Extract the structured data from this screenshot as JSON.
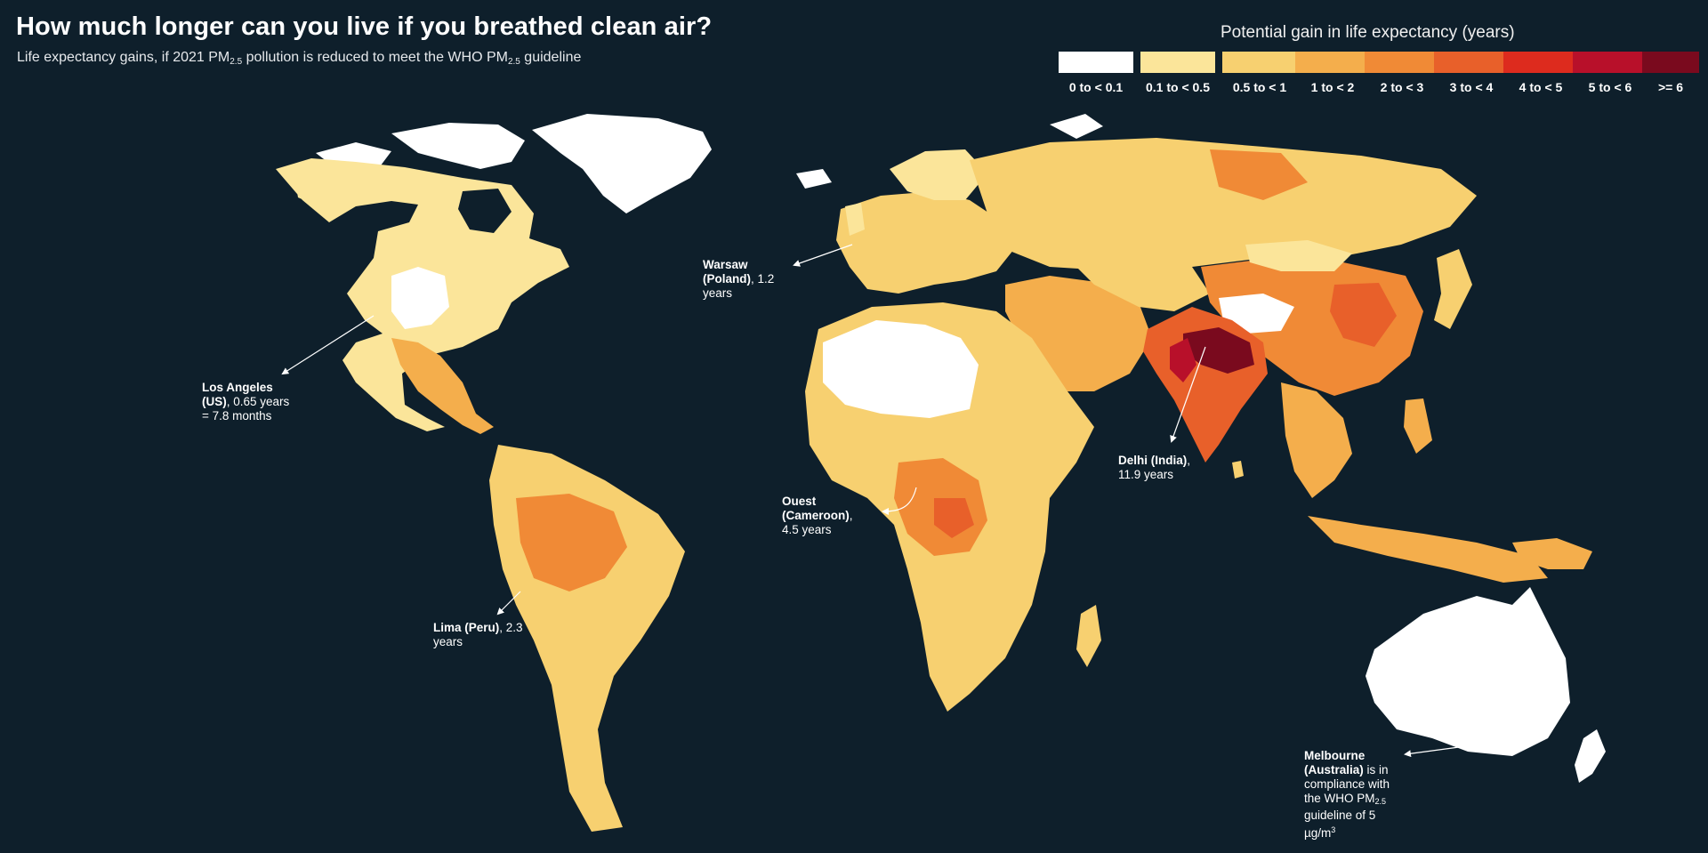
{
  "header": {
    "title": "How much longer can you live if you breathed clean air?",
    "subtitle_part1": "Life expectancy gains, if 2021 PM",
    "subtitle_sub1": "2.5",
    "subtitle_part2": " pollution is reduced to meet the WHO PM",
    "subtitle_sub2": "2.5",
    "subtitle_part3": " guideline"
  },
  "legend": {
    "title": "Potential gain in life expectancy (years)",
    "items": [
      {
        "label": "0 to < 0.1",
        "color": "#ffffff"
      },
      {
        "label": "0.1 to < 0.5",
        "color": "#fbe59a"
      },
      {
        "label": "0.5 to < 1",
        "color": "#f7d070"
      },
      {
        "label": "1 to < 2",
        "color": "#f4ae4c"
      },
      {
        "label": "2 to < 3",
        "color": "#f08a36"
      },
      {
        "label": "3 to < 4",
        "color": "#e8602a"
      },
      {
        "label": "4 to < 5",
        "color": "#dd2b1e"
      },
      {
        "label": "5 to < 6",
        "color": "#b8102a"
      },
      {
        "label": ">= 6",
        "color": "#7a0a1e"
      }
    ]
  },
  "annotations": {
    "los_angeles": {
      "name": "Los Angeles",
      "country": "(US)",
      "value": ", 0.65 years",
      "extra": "= 7.8 months"
    },
    "warsaw": {
      "name": "Warsaw",
      "country": "(Poland)",
      "value": ", 1.2",
      "extra": "years"
    },
    "delhi": {
      "name": "Delhi (India)",
      "value": ",",
      "extra": "11.9 years"
    },
    "ouest": {
      "name": "Ouest",
      "country": "(Cameroon)",
      "value": ",",
      "extra": "4.5 years"
    },
    "lima": {
      "name": "Lima (Peru)",
      "value": ", 2.3",
      "extra": "years"
    },
    "melbourne": {
      "name": "Melbourne",
      "country": "(Australia)",
      "line1": " is in",
      "line2": "compliance with",
      "line3a": "the WHO PM",
      "line3sub": "2.5",
      "line4": "guideline of 5",
      "line5a": "µg/m",
      "line5sup": "3"
    }
  },
  "colors": {
    "background": "#0e1f2b",
    "land_low": "#fbe59a",
    "land_none": "#ffffff"
  }
}
